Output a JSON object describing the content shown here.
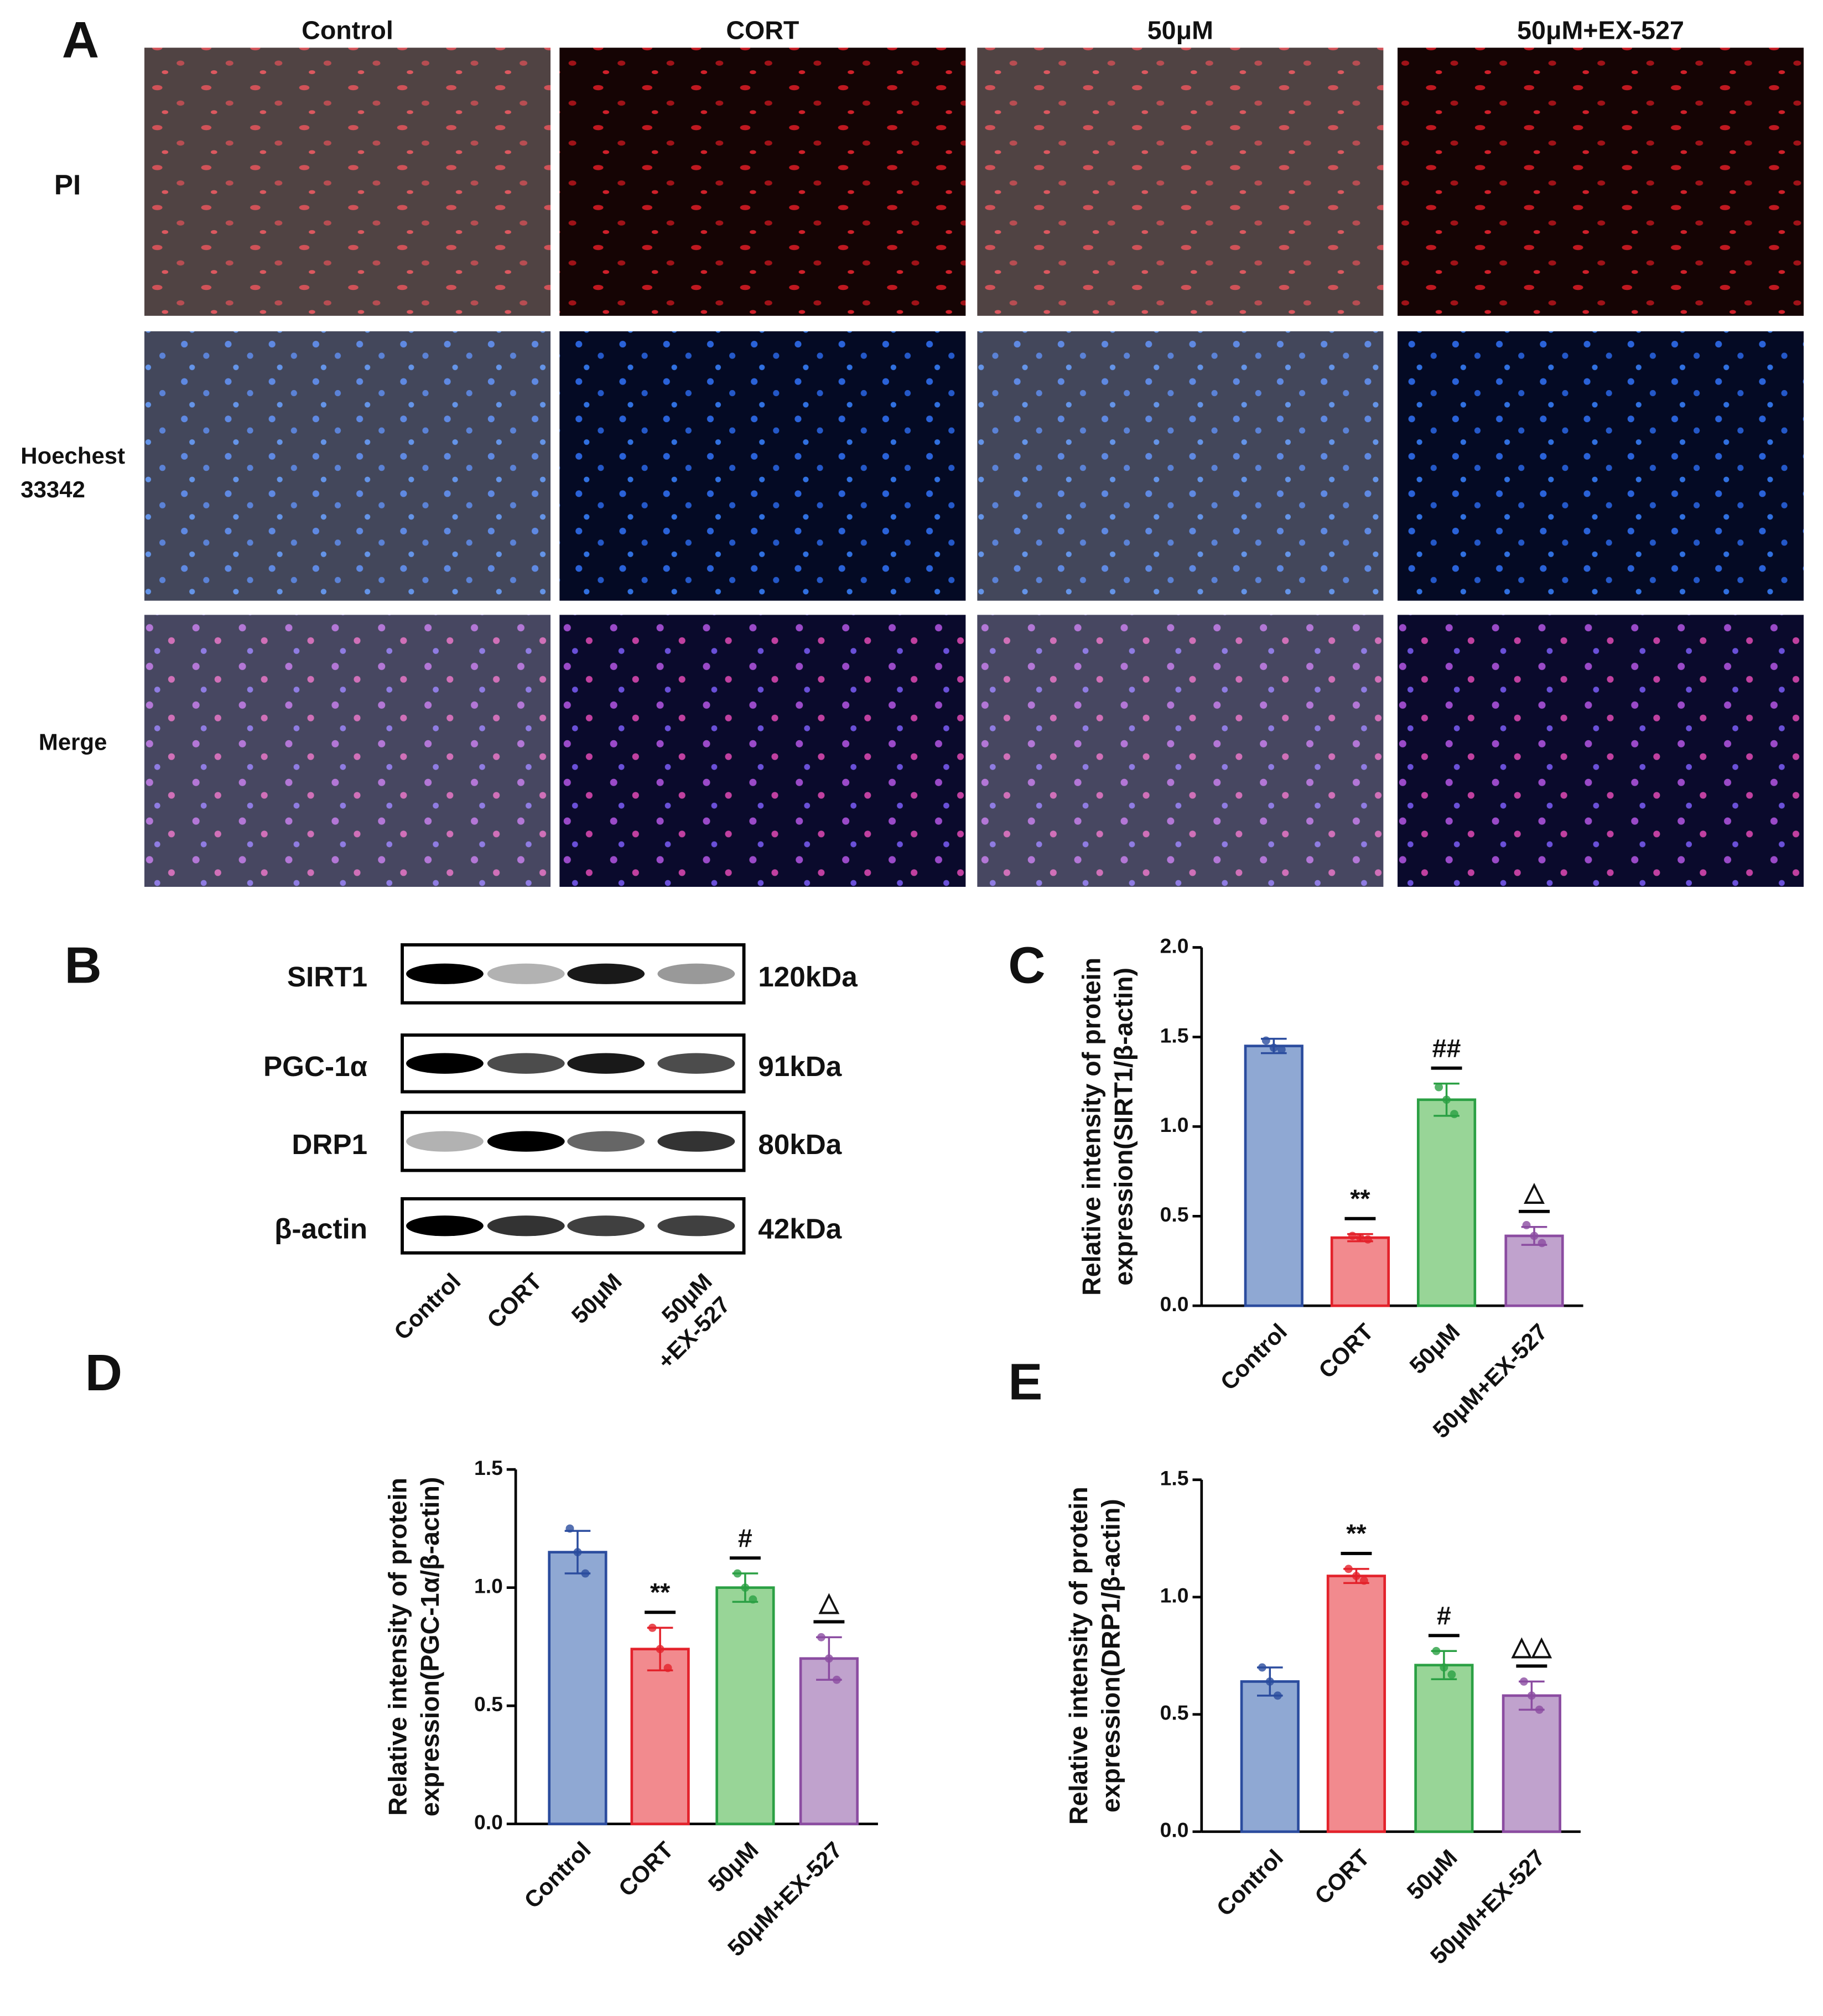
{
  "figure": {
    "panel_a": {
      "letter": "A",
      "columns": [
        "Control",
        "CORT",
        "50μM",
        "50μM+EX-527"
      ],
      "rows": [
        [
          "PI"
        ],
        [
          "Hoechest",
          "33342"
        ],
        [
          "Merge"
        ]
      ]
    },
    "panel_b": {
      "letter": "B",
      "proteins": [
        {
          "name": "SIRT1",
          "size": "120kDa"
        },
        {
          "name": "PGC-1α",
          "size": "91kDa"
        },
        {
          "name": "DRP1",
          "size": "80kDa"
        },
        {
          "name": "β-actin",
          "size": "42kDa"
        }
      ],
      "lanes": [
        [
          "Control"
        ],
        [
          "CORT"
        ],
        [
          "50μM"
        ],
        [
          "50μM",
          "+EX-527"
        ]
      ]
    }
  },
  "chart_data": [
    {
      "type": "bar",
      "panel": "C",
      "ylabel": [
        "Relative intensity of protein",
        "expression(SIRT1/β-actin)"
      ],
      "categories": [
        "Control",
        "CORT",
        "50μM",
        "50μM+EX-527"
      ],
      "values": [
        1.45,
        0.38,
        1.15,
        0.39
      ],
      "errors": [
        0.04,
        0.02,
        0.09,
        0.05
      ],
      "points": [
        [
          1.48,
          1.44,
          1.43
        ],
        [
          0.39,
          0.38,
          0.37
        ],
        [
          1.22,
          1.15,
          1.07
        ],
        [
          0.45,
          0.39,
          0.35
        ]
      ],
      "annotations": [
        null,
        "**",
        "##",
        "△"
      ],
      "colors": [
        "#8fa8d3",
        "#f28a8e",
        "#98d597",
        "#c0a2cd"
      ],
      "edge_colors": [
        "#2b4c9e",
        "#e3222b",
        "#2ba044",
        "#8b4ca1"
      ],
      "ylim": [
        0,
        2
      ],
      "yticks": [
        {
          "value": 0,
          "label": "0.0"
        },
        0.5,
        {
          "value": 1,
          "label": "1.0"
        },
        1.5,
        {
          "value": 2,
          "label": "2.0"
        }
      ]
    },
    {
      "type": "bar",
      "panel": "D",
      "ylabel": [
        "Relative intensity of protein",
        "expression(PGC-1α/β-actin)"
      ],
      "categories": [
        "Control",
        "CORT",
        "50μM",
        "50μM+EX-527"
      ],
      "values": [
        1.15,
        0.74,
        1.0,
        0.7
      ],
      "errors": [
        0.09,
        0.09,
        0.06,
        0.09
      ],
      "points": [
        [
          1.25,
          1.15,
          1.06
        ],
        [
          0.83,
          0.74,
          0.66
        ],
        [
          1.06,
          1.0,
          0.95
        ],
        [
          0.79,
          0.7,
          0.61
        ]
      ],
      "annotations": [
        null,
        "**",
        "#",
        "△"
      ],
      "colors": [
        "#8fa8d3",
        "#f28a8e",
        "#98d597",
        "#c0a2cd"
      ],
      "edge_colors": [
        "#2b4c9e",
        "#e3222b",
        "#2ba044",
        "#8b4ca1"
      ],
      "ylim": [
        0,
        1.5
      ],
      "yticks": [
        {
          "value": 0,
          "label": "0.0"
        },
        0.5,
        {
          "value": 1,
          "label": "1.0"
        },
        1.5
      ]
    },
    {
      "type": "bar",
      "panel": "E",
      "ylabel": [
        "Relative intensity of protein",
        "expression(DRP1/β-actin)"
      ],
      "categories": [
        "Control",
        "CORT",
        "50μM",
        "50μM+EX-527"
      ],
      "values": [
        0.64,
        1.09,
        0.71,
        0.58
      ],
      "errors": [
        0.06,
        0.03,
        0.06,
        0.06
      ],
      "points": [
        [
          0.7,
          0.64,
          0.58
        ],
        [
          1.12,
          1.09,
          1.07
        ],
        [
          0.77,
          0.7,
          0.67
        ],
        [
          0.64,
          0.58,
          0.52
        ]
      ],
      "annotations": [
        null,
        "**",
        "#",
        "△△"
      ],
      "colors": [
        "#8fa8d3",
        "#f28a8e",
        "#98d597",
        "#c0a2cd"
      ],
      "edge_colors": [
        "#2b4c9e",
        "#e3222b",
        "#2ba044",
        "#8b4ca1"
      ],
      "ylim": [
        0,
        1.5
      ],
      "yticks": [
        {
          "value": 0,
          "label": "0.0"
        },
        0.5,
        {
          "value": 1,
          "label": "1.0"
        },
        1.5
      ]
    }
  ]
}
